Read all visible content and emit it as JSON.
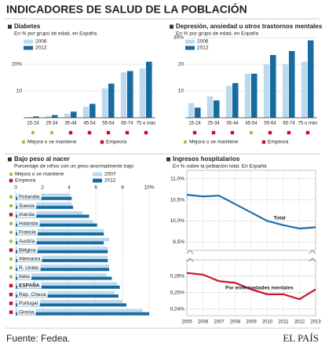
{
  "title": "INDICADORES DE SALUD DE LA POBLACIÓN",
  "source": "Fuente: Fedea.",
  "brand": "EL PAÍS",
  "chart_data": [
    {
      "type": "bar",
      "title": "Diabetes",
      "subtitle": "En % por grupo de edad, en España",
      "categories": [
        "15-24",
        "25-34",
        "35-44",
        "45-54",
        "55-64",
        "65-74",
        "75 o más"
      ],
      "series": [
        {
          "name": "2006",
          "color": "#bcd9ee",
          "values": [
            0.3,
            0.7,
            1.5,
            4.1,
            11,
            17,
            18.5
          ]
        },
        {
          "name": "2012",
          "color": "#176ba0",
          "values": [
            0.5,
            1.0,
            2.3,
            5.2,
            12.8,
            17.5,
            21
          ]
        }
      ],
      "ylim": [
        0,
        22
      ],
      "yticks": [
        10,
        {
          "value": 20,
          "label": "20%"
        }
      ],
      "grid": true,
      "status_legend": [
        {
          "label": "Mejora o se mantiene",
          "color": "#8cc63f"
        },
        {
          "label": "Empeora",
          "color": "#c8102e"
        }
      ],
      "status": [
        0,
        0,
        1,
        1,
        1,
        1,
        1
      ]
    },
    {
      "type": "bar",
      "title": "Depresión, ansiedad u otros trastornos mentales",
      "subtitle": "En % por grupo de edad, en España",
      "categories": [
        "15-24",
        "25-34",
        "35-44",
        "45-54",
        "55-64",
        "65-74",
        "75 o más"
      ],
      "series": [
        {
          "name": "2006",
          "color": "#bcd9ee",
          "values": [
            5.5,
            8,
            12,
            16.5,
            20,
            20,
            21
          ]
        },
        {
          "name": "2012",
          "color": "#176ba0",
          "values": [
            3.8,
            6.5,
            13,
            16.5,
            23.5,
            25,
            29
          ]
        }
      ],
      "ylim": [
        0,
        31
      ],
      "yticks": [
        10,
        20,
        {
          "value": 30,
          "label": "30%"
        }
      ],
      "grid": true,
      "status_legend": [
        {
          "label": "Mejora o se mantiene",
          "color": "#8cc63f"
        },
        {
          "label": "Empeora",
          "color": "#c8102e"
        }
      ],
      "status": [
        1,
        1,
        1,
        0,
        1,
        1,
        1
      ]
    },
    {
      "type": "hbar",
      "title": "Bajo peso al nacer",
      "subtitle": "Porcentaje de niños con un peso anormalmente bajo",
      "categories": [
        "Finlandia",
        "Suecia",
        "Irlanda",
        "Holanda",
        "Francia",
        "Austria",
        "Bélgica",
        "Alemania",
        "R. Unido",
        "Italia",
        "ESPAÑA",
        "Rep. Checa",
        "Portugal",
        "Grecia"
      ],
      "series": [
        {
          "name": "2007",
          "color": "#bcd9ee",
          "values": [
            4.1,
            4.2,
            5.0,
            5.8,
            6.6,
            7.0,
            6.9,
            6.9,
            7.0,
            6.8,
            7.6,
            7.4,
            8.0,
            9.5
          ]
        },
        {
          "name": "2012",
          "color": "#176ba0",
          "values": [
            4.2,
            4.3,
            5.5,
            6.1,
            6.6,
            6.6,
            6.9,
            6.9,
            7.0,
            7.2,
            7.8,
            7.7,
            8.3,
            10
          ]
        }
      ],
      "xlim": [
        0,
        10
      ],
      "xticks": [
        0,
        2,
        4,
        6,
        8,
        {
          "value": 10,
          "label": "10%"
        }
      ],
      "grid": true,
      "status_legend": [
        {
          "label": "Mejora o se mantiene",
          "color": "#8cc63f"
        },
        {
          "label": "Empeora",
          "color": "#c8102e"
        }
      ],
      "status": [
        0,
        0,
        1,
        0,
        0,
        0,
        1,
        0,
        0,
        0,
        1,
        1,
        1,
        1
      ]
    },
    {
      "type": "line",
      "title": "Ingresos hospitalarios",
      "subtitle": "En % sobre la población total. En España",
      "x": [
        2005,
        2006,
        2007,
        2008,
        2009,
        2010,
        2011,
        2012,
        2013
      ],
      "xlim": [
        2005,
        2013
      ],
      "xticks": [
        2005,
        2006,
        2007,
        2008,
        2009,
        2010,
        2011,
        2012,
        2013
      ],
      "series": [
        {
          "name": "Total",
          "color": "#1e6fa8",
          "values": [
            10.62,
            10.58,
            10.6,
            10.4,
            10.2,
            10.0,
            9.9,
            9.82,
            9.85
          ]
        },
        {
          "name": "Por enfermedades mentales",
          "color": "#d0112b",
          "axis": "y2",
          "values": [
            0.262,
            0.261,
            0.257,
            0.256,
            0.252,
            0.249,
            0.249,
            0.246,
            0.252
          ]
        }
      ],
      "ylim": [
        9.3,
        11.2
      ],
      "yticks": [
        {
          "value": 11,
          "label": "11,0%"
        },
        {
          "value": 10.5,
          "label": "10,5%"
        },
        {
          "value": 10,
          "label": "10,0%"
        },
        {
          "value": 9.5,
          "label": "9,5%"
        }
      ],
      "y2lim": [
        0.236,
        0.27
      ],
      "y2ticks": [
        {
          "value": 0.26,
          "label": "0,26%"
        },
        {
          "value": 0.25,
          "label": "0,25%"
        },
        {
          "value": 0.24,
          "label": "0,24%"
        }
      ],
      "grid": true
    }
  ]
}
